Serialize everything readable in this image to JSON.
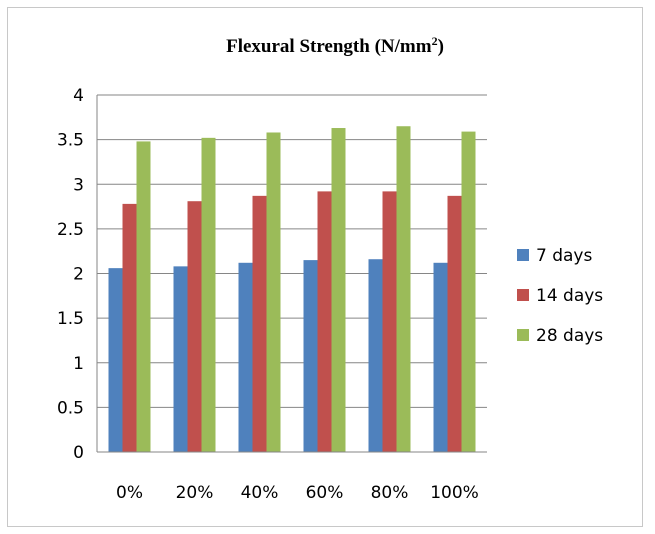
{
  "chart_data": {
    "type": "bar",
    "title": "Flexural Strength (N/mm",
    "title_superscript": "2",
    "title_suffix": ")",
    "xlabel": "",
    "ylabel": "",
    "categories": [
      "0%",
      "20%",
      "40%",
      "60%",
      "80%",
      "100%"
    ],
    "series": [
      {
        "name": "7 days",
        "color": "#4f81bd",
        "values": [
          2.06,
          2.08,
          2.12,
          2.15,
          2.16,
          2.12
        ]
      },
      {
        "name": "14 days",
        "color": "#c0504d",
        "values": [
          2.78,
          2.81,
          2.87,
          2.92,
          2.92,
          2.87
        ]
      },
      {
        "name": "28 days",
        "color": "#9bbb59",
        "values": [
          3.48,
          3.52,
          3.58,
          3.63,
          3.65,
          3.59
        ]
      }
    ],
    "ylim": [
      0,
      4
    ],
    "yticks": [
      "0",
      "0.5",
      "1",
      "1.5",
      "2",
      "2.5",
      "3",
      "3.5",
      "4"
    ],
    "grid": true,
    "legend_position": "right"
  }
}
